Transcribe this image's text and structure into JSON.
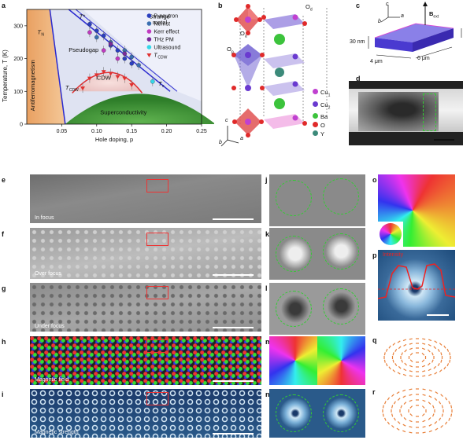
{
  "panel_labels": {
    "a": "a",
    "b": "b",
    "c": "c",
    "d": "d",
    "e": "e",
    "f": "f",
    "g": "g",
    "h": "h",
    "i": "i",
    "j": "j",
    "k": "k",
    "l": "l",
    "m": "m",
    "n": "n",
    "o": "o",
    "p": "p",
    "q": "q",
    "r": "r"
  },
  "phase_diagram": {
    "ylabel": "Temperature, T (K)",
    "xlabel": "Hole doping, p",
    "regions": {
      "afm": "Antiferromagnetism",
      "pseudogap": "Pseudogap",
      "strange_metal": "Strange\nmetal",
      "cdw": "CDW",
      "sc": "Superconductivity",
      "tn": "T",
      "tn_sub": "N",
      "tstar": "T*",
      "tcdw": "T",
      "tcdw_sub": "CDW",
      "tc": "T",
      "tc_sub": "c"
    },
    "legend": [
      {
        "label": "P-neutron",
        "color": "#2a3fbf"
      },
      {
        "label": "Nernst",
        "color": "#3a6fb0"
      },
      {
        "label": "Kerr effect",
        "color": "#c03ac0"
      },
      {
        "label": "THz PM",
        "color": "#7a2a9a"
      },
      {
        "label": "Ultrasound",
        "color": "#35d7e8"
      },
      {
        "label": "T",
        "label_sub": "CDW",
        "color": "#e03030"
      }
    ]
  },
  "chart_data": {
    "type": "scatter",
    "xlabel": "Hole doping, p",
    "ylabel": "Temperature, T (K)",
    "xlim": [
      0,
      0.25
    ],
    "ylim": [
      0,
      350
    ],
    "xticks": [
      "0.05",
      "0.10",
      "0.15",
      "0.20",
      "0.25"
    ],
    "yticks": [
      "0",
      "100",
      "200",
      "300"
    ],
    "series": [
      {
        "name": "P-neutron",
        "x": [
          0.09,
          0.1,
          0.11,
          0.12,
          0.13,
          0.14,
          0.15
        ],
        "y": [
          305,
          285,
          270,
          240,
          225,
          200,
          185
        ]
      },
      {
        "name": "Nernst",
        "x": [
          0.1,
          0.12,
          0.14,
          0.15,
          0.16
        ],
        "y": [
          265,
          250,
          225,
          205,
          180
        ]
      },
      {
        "name": "Kerr effect",
        "x": [
          0.09,
          0.11,
          0.13
        ],
        "y": [
          280,
          225,
          200
        ]
      },
      {
        "name": "THz PM",
        "x": [
          0.12,
          0.14
        ],
        "y": [
          245,
          215
        ]
      },
      {
        "name": "Ultrasound",
        "x": [
          0.18
        ],
        "y": [
          130
        ]
      },
      {
        "name": "T_CDW",
        "x": [
          0.08,
          0.09,
          0.1,
          0.11,
          0.12,
          0.13,
          0.14,
          0.15
        ],
        "y": [
          110,
          140,
          150,
          160,
          155,
          145,
          140,
          120
        ]
      }
    ]
  },
  "structure": {
    "labels": {
      "oa": "O",
      "oa_sub": "a",
      "od": "O",
      "od_sub": "d",
      "op": "O",
      "op_sub": "p"
    },
    "legend": [
      {
        "label": "Cu",
        "sub": "1",
        "color": "#c040d0"
      },
      {
        "label": "Cu",
        "sub": "2",
        "color": "#6a3ad0"
      },
      {
        "label": "Ba",
        "color": "#3cc33c"
      },
      {
        "label": "O",
        "color": "#e02a2a"
      },
      {
        "label": "Y",
        "color": "#3c8a7a"
      }
    ],
    "axes": {
      "c": "c",
      "b": "b",
      "a": "a"
    }
  },
  "sample_geometry": {
    "field": "B",
    "field_sub": "ext",
    "thickness": "30 nm",
    "width": "4 μm",
    "length": "6 μm",
    "axes": {
      "c": "c",
      "b": "b",
      "a": "a"
    }
  },
  "tem_images": {
    "in_focus": "In focus",
    "over_focus": "Over focus",
    "under_focus": "Under focus",
    "magnetic_field": "Magnetic field",
    "magnetic_strength": "Magnetic strength"
  },
  "intensity_label": "Intensity"
}
